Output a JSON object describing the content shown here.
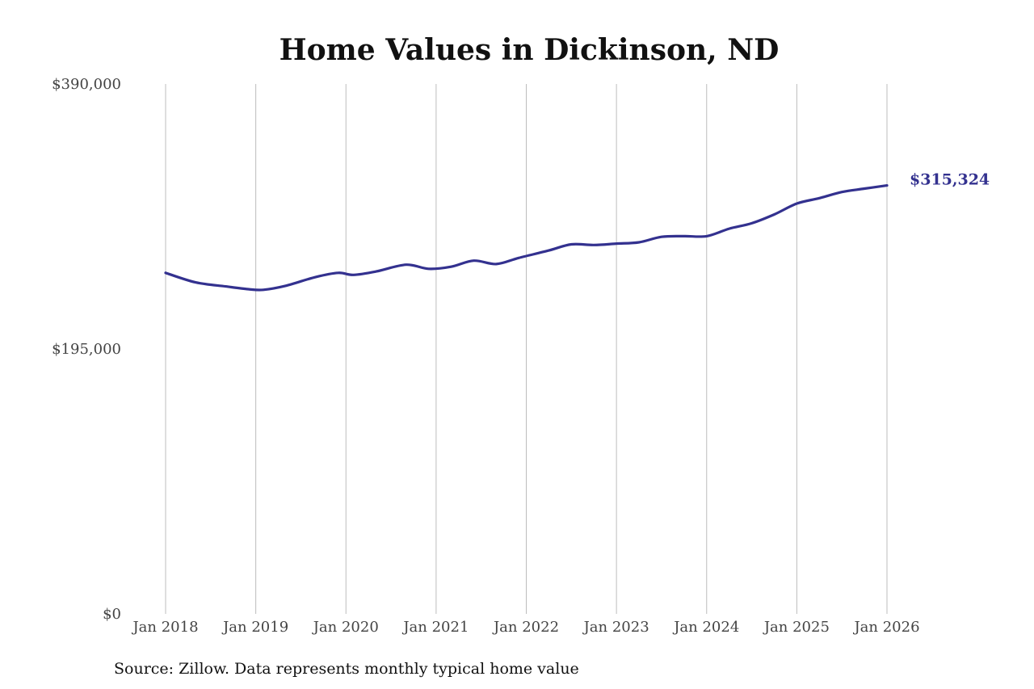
{
  "chart_data": {
    "type": "line",
    "title": "Home Values in Dickinson, ND",
    "source": "Source: Zillow. Data represents monthly typical home value",
    "line_color": "#33318f",
    "grid": "vertical lines at x ticks",
    "ylim": [
      0,
      390000
    ],
    "xlim": [
      "2018-01",
      "2026-01"
    ],
    "y_ticks": [
      {
        "value": 0,
        "label": "$0"
      },
      {
        "value": 195000,
        "label": "$195,000"
      },
      {
        "value": 390000,
        "label": "$390,000"
      }
    ],
    "x_ticks": [
      {
        "value": "2018-01",
        "label": "Jan 2018"
      },
      {
        "value": "2019-01",
        "label": "Jan 2019"
      },
      {
        "value": "2020-01",
        "label": "Jan 2020"
      },
      {
        "value": "2021-01",
        "label": "Jan 2021"
      },
      {
        "value": "2022-01",
        "label": "Jan 2022"
      },
      {
        "value": "2023-01",
        "label": "Jan 2023"
      },
      {
        "value": "2024-01",
        "label": "Jan 2024"
      },
      {
        "value": "2025-01",
        "label": "Jan 2025"
      },
      {
        "value": "2026-01",
        "label": "Jan 2026"
      }
    ],
    "end_label": "$315,324",
    "series": [
      {
        "points": [
          {
            "x": "2018-01",
            "y": 251000
          },
          {
            "x": "2018-05",
            "y": 244000
          },
          {
            "x": "2018-09",
            "y": 241000
          },
          {
            "x": "2018-12",
            "y": 239000
          },
          {
            "x": "2019-02",
            "y": 238500
          },
          {
            "x": "2019-05",
            "y": 241500
          },
          {
            "x": "2019-09",
            "y": 248000
          },
          {
            "x": "2019-12",
            "y": 251000
          },
          {
            "x": "2020-02",
            "y": 249500
          },
          {
            "x": "2020-05",
            "y": 252000
          },
          {
            "x": "2020-09",
            "y": 257000
          },
          {
            "x": "2020-12",
            "y": 254000
          },
          {
            "x": "2021-03",
            "y": 255500
          },
          {
            "x": "2021-06",
            "y": 260000
          },
          {
            "x": "2021-09",
            "y": 257500
          },
          {
            "x": "2021-12",
            "y": 262000
          },
          {
            "x": "2022-04",
            "y": 267500
          },
          {
            "x": "2022-07",
            "y": 272000
          },
          {
            "x": "2022-10",
            "y": 271500
          },
          {
            "x": "2023-01",
            "y": 272500
          },
          {
            "x": "2023-04",
            "y": 273500
          },
          {
            "x": "2023-07",
            "y": 277500
          },
          {
            "x": "2023-10",
            "y": 278000
          },
          {
            "x": "2024-01",
            "y": 278000
          },
          {
            "x": "2024-04",
            "y": 283500
          },
          {
            "x": "2024-07",
            "y": 287500
          },
          {
            "x": "2024-10",
            "y": 294000
          },
          {
            "x": "2025-01",
            "y": 302000
          },
          {
            "x": "2025-04",
            "y": 306000
          },
          {
            "x": "2025-07",
            "y": 310500
          },
          {
            "x": "2025-10",
            "y": 313000
          },
          {
            "x": "2026-01",
            "y": 315324
          }
        ]
      }
    ]
  }
}
